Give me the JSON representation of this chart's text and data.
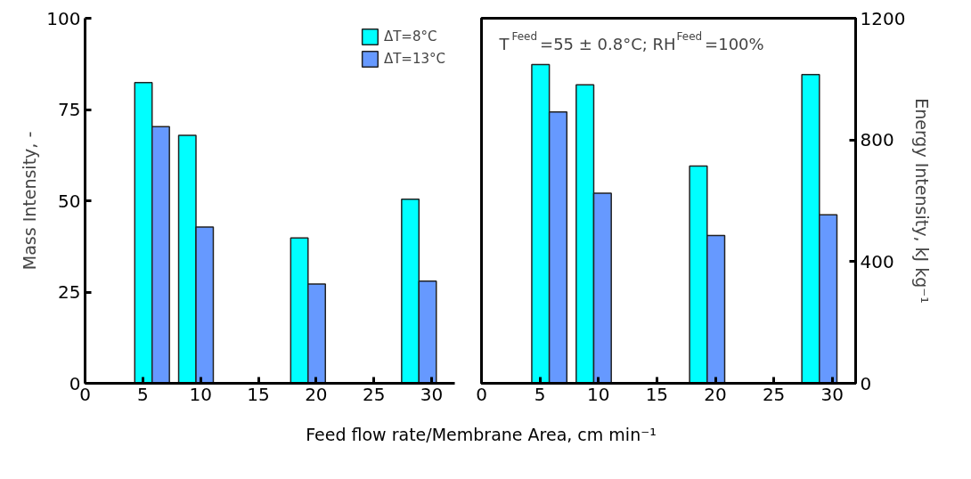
{
  "chart_data": [
    {
      "type": "bar",
      "ylabel": "Mass Intensity, -",
      "xlabel": "Feed flow rate/Membrane Area, cm min⁻¹",
      "x": [
        5.8,
        9.6,
        19.3,
        28.9
      ],
      "xlim": [
        0,
        32
      ],
      "xticks": [
        0,
        5,
        10,
        15,
        20,
        25,
        30
      ],
      "ylim": [
        0,
        100
      ],
      "yticks": [
        0,
        25,
        50,
        75,
        100
      ],
      "legend": "top right",
      "grid": false,
      "series": [
        {
          "name": "ΔT=8°C",
          "color": "#00ffff",
          "values": [
            82.4,
            67.9,
            39.8,
            50.4
          ]
        },
        {
          "name": "ΔT=13°C",
          "color": "#6699ff",
          "values": [
            70.3,
            42.8,
            27.2,
            28.0
          ]
        }
      ]
    },
    {
      "type": "bar",
      "y2label": "Energy Intensity, kJ kg⁻¹",
      "x": [
        5.8,
        9.6,
        19.3,
        28.9
      ],
      "xlim": [
        0,
        32
      ],
      "xticks": [
        0,
        5,
        10,
        15,
        20,
        25,
        30
      ],
      "y2lim": [
        0,
        1200
      ],
      "y2ticks": [
        0,
        400,
        800,
        1200
      ],
      "grid": false,
      "annotations": [
        "T$^{Feed}$=55 ± 0.8°C; RH$^{Feed}$=100%"
      ],
      "series": [
        {
          "color": "#00ffff",
          "axis": "y2",
          "values": [
            1048,
            981,
            714,
            1015
          ]
        },
        {
          "color": "#6699ff",
          "axis": "y2",
          "values": [
            892,
            625,
            486,
            554
          ]
        }
      ]
    }
  ]
}
